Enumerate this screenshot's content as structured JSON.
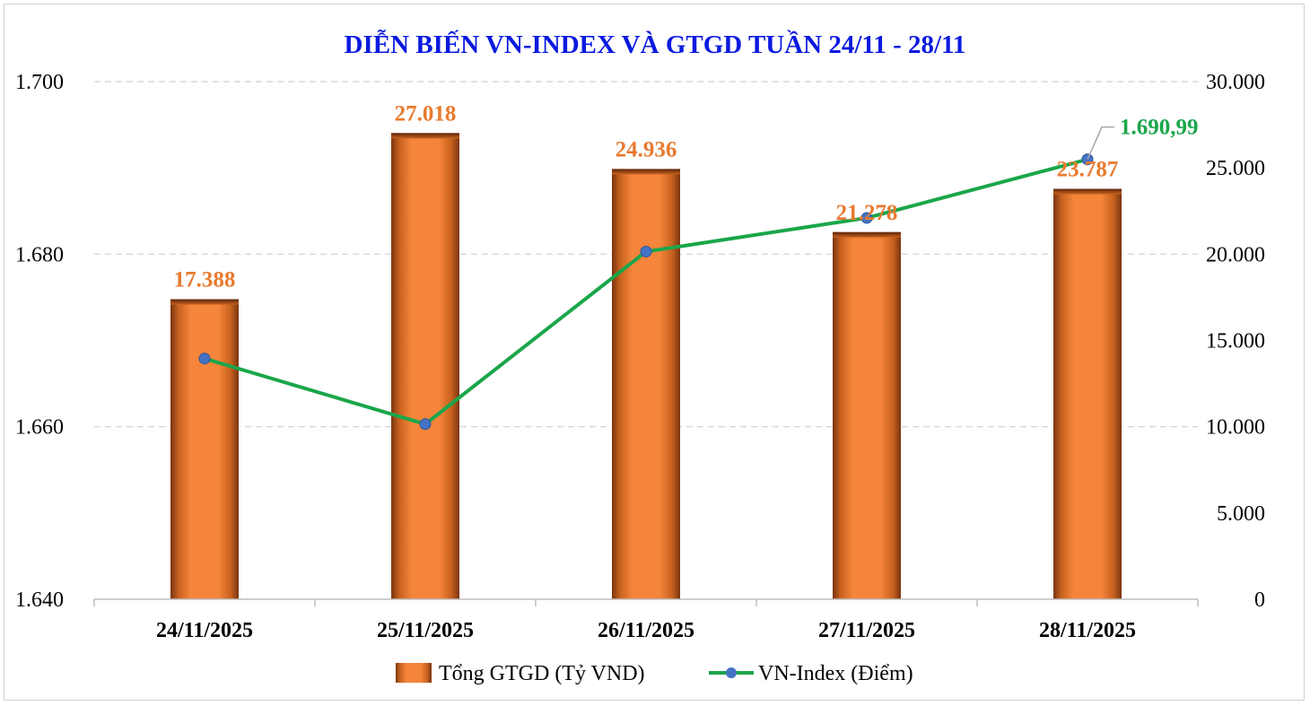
{
  "chart_data": {
    "type": "bar",
    "title": "DIỄN BIẾN VN-INDEX VÀ GTGD TUẦN 24/11 - 28/11",
    "categories": [
      "24/11/2025",
      "25/11/2025",
      "26/11/2025",
      "27/11/2025",
      "28/11/2025"
    ],
    "series": [
      {
        "name": "Tổng GTGD (Tỷ VND)",
        "type": "bar",
        "axis": "right",
        "values": [
          17388,
          27018,
          24936,
          21278,
          23787
        ],
        "labels": [
          "17.388",
          "27.018",
          "24.936",
          "21.278",
          "23.787"
        ],
        "color": "#f5853a"
      },
      {
        "name": "VN-Index (Điểm)",
        "type": "line",
        "axis": "left",
        "values": [
          1667.9,
          1660.3,
          1680.3,
          1684.2,
          1690.99
        ],
        "last_label": "1.690,99",
        "line_color": "#1aa64a",
        "marker_color": "#4472c4"
      }
    ],
    "left_axis": {
      "ylim": [
        1640,
        1700
      ],
      "ticks": [
        "1.640",
        "1.660",
        "1.680",
        "1.700"
      ],
      "tick_values": [
        1640,
        1660,
        1680,
        1700
      ]
    },
    "right_axis": {
      "ylim": [
        0,
        30000
      ],
      "ticks": [
        "0",
        "5.000",
        "10.000",
        "15.000",
        "20.000",
        "25.000",
        "30.000"
      ],
      "tick_values": [
        0,
        5000,
        10000,
        15000,
        20000,
        25000,
        30000
      ]
    },
    "grid": true,
    "legend_position": "bottom",
    "colors": {
      "title": "#0a1adf",
      "bar_label": "#e87a2f",
      "line_label": "#1aa64a",
      "grid": "#d0d0d0"
    }
  }
}
